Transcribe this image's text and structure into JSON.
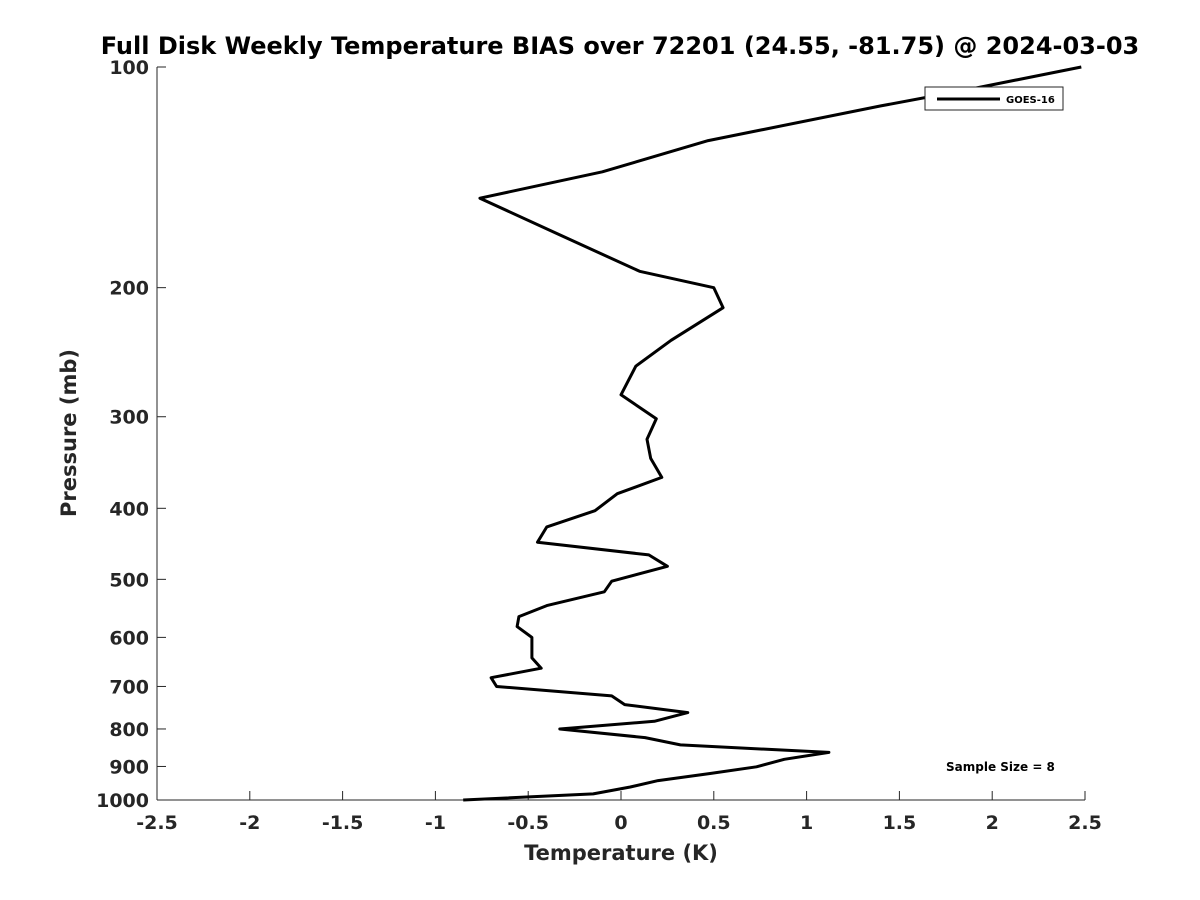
{
  "chart_data": {
    "type": "line",
    "title": "Full Disk Weekly Temperature BIAS over 72201 (24.55, -81.75) @ 2024-03-03",
    "xlabel": "Temperature (K)",
    "ylabel": "Pressure (mb)",
    "xlim": [
      -2.5,
      2.5
    ],
    "ylim": [
      1000,
      100
    ],
    "yscale": "log",
    "y_reversed": true,
    "x_ticks": [
      "-2.5",
      "-2",
      "-1.5",
      "-1",
      "-0.5",
      "0",
      "0.5",
      "1",
      "1.5",
      "2",
      "2.5"
    ],
    "x_tick_values": [
      -2.5,
      -2,
      -1.5,
      -1,
      -0.5,
      0,
      0.5,
      1,
      1.5,
      2,
      2.5
    ],
    "y_ticks": [
      "100",
      "200",
      "300",
      "400",
      "500",
      "600",
      "700",
      "800",
      "900",
      "1000"
    ],
    "y_tick_values": [
      100,
      200,
      300,
      400,
      500,
      600,
      700,
      800,
      900,
      1000
    ],
    "grid": false,
    "legend": {
      "position": "top-right"
    },
    "annotation": "Sample Size = 8",
    "line_color": "#000000",
    "series": [
      {
        "name": "GOES-16",
        "points": [
          [
            2.48,
            100
          ],
          [
            1.9,
            107
          ],
          [
            1.4,
            113
          ],
          [
            0.47,
            126
          ],
          [
            -0.1,
            139
          ],
          [
            -0.76,
            151
          ],
          [
            -0.34,
            169
          ],
          [
            0.1,
            190
          ],
          [
            0.5,
            200
          ],
          [
            0.55,
            213
          ],
          [
            0.27,
            236
          ],
          [
            0.08,
            256
          ],
          [
            0.0,
            280
          ],
          [
            0.19,
            302
          ],
          [
            0.14,
            322
          ],
          [
            0.16,
            342
          ],
          [
            0.22,
            363
          ],
          [
            -0.02,
            382
          ],
          [
            -0.14,
            403
          ],
          [
            -0.4,
            424
          ],
          [
            -0.45,
            445
          ],
          [
            0.15,
            463
          ],
          [
            0.25,
            480
          ],
          [
            -0.05,
            503
          ],
          [
            -0.09,
            520
          ],
          [
            -0.4,
            543
          ],
          [
            -0.55,
            562
          ],
          [
            -0.56,
            580
          ],
          [
            -0.48,
            600
          ],
          [
            -0.48,
            622
          ],
          [
            -0.48,
            640
          ],
          [
            -0.43,
            661
          ],
          [
            -0.7,
            681
          ],
          [
            -0.67,
            700
          ],
          [
            -0.05,
            721
          ],
          [
            0.02,
            741
          ],
          [
            0.36,
            760
          ],
          [
            0.18,
            781
          ],
          [
            -0.33,
            800
          ],
          [
            0.13,
            822
          ],
          [
            0.32,
            841
          ],
          [
            1.12,
            861
          ],
          [
            0.88,
            880
          ],
          [
            0.73,
            901
          ],
          [
            0.48,
            920
          ],
          [
            0.2,
            941
          ],
          [
            0.05,
            960
          ],
          [
            -0.15,
            981
          ],
          [
            -0.85,
            1000
          ]
        ]
      }
    ]
  }
}
